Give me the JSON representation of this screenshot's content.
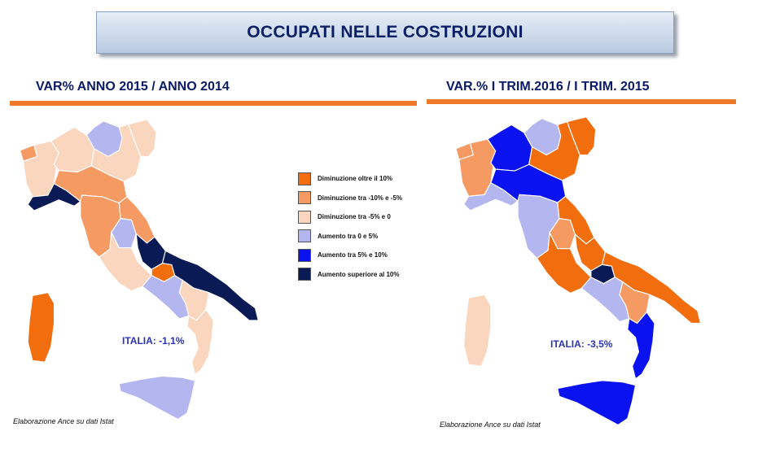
{
  "title": "OCCUPATI NELLE COSTRUZIONI",
  "colors": {
    "dim_oltre_10": "#f26d0e",
    "dim_10_5": "#f59a62",
    "dim_5_0": "#fbd6bf",
    "aum_0_5": "#b4b6f0",
    "aum_5_10": "#0a12f0",
    "aum_oltre_10": "#0a1a55",
    "rule": "#f07a2a"
  },
  "legend": [
    {
      "label": "Diminuzione oltre il 10%",
      "color": "#f26d0e"
    },
    {
      "label": "Diminuzione tra  -10% e -5%",
      "color": "#f59a62"
    },
    {
      "label": "Diminuzione tra  -5% e 0",
      "color": "#fbd6bf"
    },
    {
      "label": "Aumento tra 0  e  5%",
      "color": "#b4b6f0"
    },
    {
      "label": "Aumento tra 5%  e 10%",
      "color": "#0a12f0"
    },
    {
      "label": "Aumento superiore al 10%",
      "color": "#0a1a55"
    }
  ],
  "left": {
    "subtitle": "VAR% ANNO 2015 / ANNO 2014",
    "national": "ITALIA: -1,1%",
    "source": "Elaborazione Ance su dati Istat",
    "regions": {
      "valle_aosta": "dim_10_5",
      "piemonte": "dim_5_0",
      "lombardia": "dim_5_0",
      "trentino": "aum_0_5",
      "veneto": "dim_5_0",
      "friuli": "dim_5_0",
      "liguria": "aum_oltre_10",
      "emilia": "dim_10_5",
      "toscana": "dim_10_5",
      "umbria": "aum_0_5",
      "marche": "dim_10_5",
      "lazio": "dim_5_0",
      "abruzzo": "aum_oltre_10",
      "molise": "dim_oltre_10",
      "campania": "aum_0_5",
      "puglia": "aum_oltre_10",
      "basilicata": "dim_5_0",
      "calabria": "dim_5_0",
      "sicilia": "aum_0_5",
      "sardegna": "dim_oltre_10"
    }
  },
  "right": {
    "subtitle": "VAR.% I TRIM.2016 / I TRIM. 2015",
    "national": "ITALIA: -3,5%",
    "source": "Elaborazione Ance su dati Istat",
    "regions": {
      "valle_aosta": "dim_10_5",
      "piemonte": "dim_10_5",
      "lombardia": "aum_5_10",
      "trentino": "aum_0_5",
      "veneto": "dim_oltre_10",
      "friuli": "dim_oltre_10",
      "liguria": "aum_0_5",
      "emilia": "aum_5_10",
      "toscana": "aum_0_5",
      "umbria": "dim_10_5",
      "marche": "dim_oltre_10",
      "lazio": "dim_oltre_10",
      "abruzzo": "dim_oltre_10",
      "molise": "aum_oltre_10",
      "campania": "aum_0_5",
      "puglia": "dim_oltre_10",
      "basilicata": "dim_10_5",
      "calabria": "aum_5_10",
      "sicilia": "aum_5_10",
      "sardegna": "dim_5_0"
    }
  }
}
